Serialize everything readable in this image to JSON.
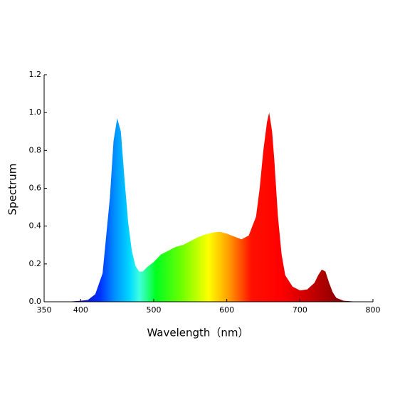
{
  "chart_data": {
    "type": "area",
    "xlabel": "Wavelength（nm）",
    "ylabel": "Spectrum",
    "x": [
      380,
      400,
      410,
      420,
      430,
      440,
      445,
      450,
      455,
      460,
      465,
      470,
      475,
      480,
      485,
      490,
      500,
      510,
      520,
      530,
      540,
      550,
      560,
      570,
      580,
      590,
      600,
      610,
      620,
      630,
      640,
      645,
      650,
      655,
      658,
      662,
      665,
      670,
      675,
      680,
      690,
      700,
      710,
      720,
      725,
      730,
      735,
      740,
      745,
      750,
      760,
      780,
      800
    ],
    "values": [
      0,
      0.005,
      0.01,
      0.04,
      0.15,
      0.55,
      0.85,
      0.97,
      0.9,
      0.65,
      0.42,
      0.27,
      0.19,
      0.16,
      0.16,
      0.18,
      0.21,
      0.25,
      0.27,
      0.29,
      0.3,
      0.32,
      0.34,
      0.355,
      0.365,
      0.37,
      0.36,
      0.345,
      0.33,
      0.35,
      0.45,
      0.6,
      0.8,
      0.95,
      1.0,
      0.9,
      0.75,
      0.45,
      0.25,
      0.14,
      0.08,
      0.06,
      0.065,
      0.1,
      0.14,
      0.17,
      0.16,
      0.1,
      0.05,
      0.02,
      0.005,
      0,
      0
    ],
    "xlim": [
      350,
      800
    ],
    "xticks": [
      350,
      400,
      500,
      600,
      700,
      800
    ],
    "ylim": [
      0,
      1.2
    ],
    "yticks": [
      {
        "value": 0,
        "label": "0.0"
      },
      0.2,
      0.4,
      0.6,
      0.8,
      {
        "value": 1,
        "label": "1.0"
      },
      1.2
    ],
    "grid": false
  }
}
